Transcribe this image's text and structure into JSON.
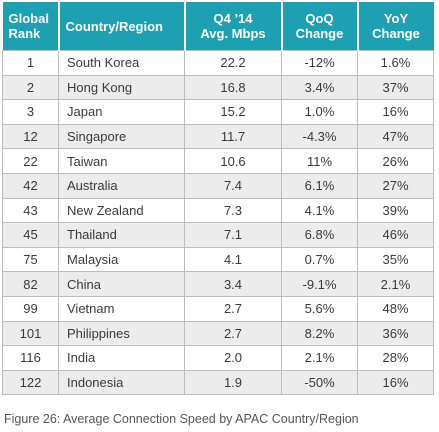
{
  "chart_data": {
    "type": "table",
    "columns": [
      {
        "line1": "Global",
        "line2": "Rank"
      },
      {
        "line1": "Country/Region",
        "line2": ""
      },
      {
        "line1": "Q4 ’14",
        "line2": "Avg. Mbps"
      },
      {
        "line1": "QoQ",
        "line2": "Change"
      },
      {
        "line1": "YoY",
        "line2": "Change"
      }
    ],
    "rows": [
      [
        "1",
        "South Korea",
        "22.2",
        "-12%",
        "1.6%"
      ],
      [
        "2",
        "Hong Kong",
        "16.8",
        "3.4%",
        "37%"
      ],
      [
        "3",
        "Japan",
        "15.2",
        "1.0%",
        "16%"
      ],
      [
        "12",
        "Singapore",
        "11.7",
        "-4.3%",
        "47%"
      ],
      [
        "22",
        "Taiwan",
        "10.6",
        "11%",
        "26%"
      ],
      [
        "42",
        "Australia",
        "7.4",
        "6.1%",
        "27%"
      ],
      [
        "43",
        "New Zealand",
        "7.3",
        "4.1%",
        "39%"
      ],
      [
        "45",
        "Thailand",
        "7.1",
        "6.8%",
        "46%"
      ],
      [
        "75",
        "Malaysia",
        "4.1",
        "0.7%",
        "35%"
      ],
      [
        "82",
        "China",
        "3.4",
        "-9.1%",
        "2.1%"
      ],
      [
        "99",
        "Vietnam",
        "2.7",
        "5.6%",
        "48%"
      ],
      [
        "101",
        "Philippines",
        "2.7",
        "8.2%",
        "36%"
      ],
      [
        "116",
        "India",
        "2.0",
        "2.1%",
        "28%"
      ],
      [
        "122",
        "Indonesia",
        "1.9",
        "-50%",
        "16%"
      ]
    ],
    "caption": "Figure 26: Average Connection Speed by APAC Country/Region"
  },
  "colors": {
    "header_background": "#1ea0b3",
    "header_text": "#ffffff",
    "stripe": "#ececec",
    "border": "#bcbcbc"
  }
}
